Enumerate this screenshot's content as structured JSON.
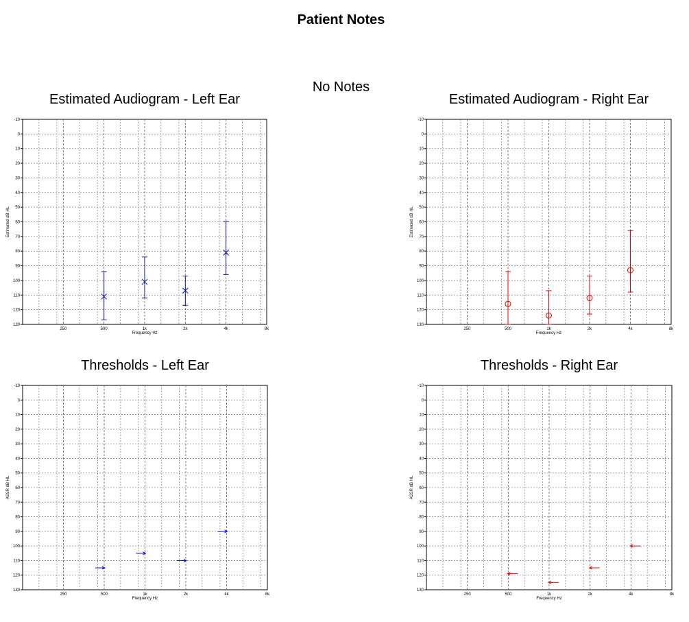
{
  "page": {
    "title": "Patient Notes",
    "notes": "No Notes"
  },
  "chart_data": [
    {
      "id": "audiogram-left",
      "type": "scatter",
      "title": "Estimated Audiogram - Left Ear",
      "xlabel": "Frequency Hz",
      "ylabel": "Estimated dB HL",
      "x_ticks": [
        "250",
        "500",
        "1k",
        "2k",
        "4k",
        "8k"
      ],
      "y_ticks": [
        -10,
        0,
        10,
        20,
        30,
        40,
        50,
        60,
        70,
        80,
        90,
        100,
        110,
        120,
        130
      ],
      "ylim": [
        -10,
        130
      ],
      "y_inverted": true,
      "grid": true,
      "marker": "x",
      "color": "#1010a0",
      "points": [
        {
          "x": "500",
          "y": 111,
          "err_low": 94,
          "err_high": 127
        },
        {
          "x": "1k",
          "y": 101,
          "err_low": 84,
          "err_high": 112
        },
        {
          "x": "2k",
          "y": 107,
          "err_low": 97,
          "err_high": 117
        },
        {
          "x": "4k",
          "y": 81,
          "err_low": 60,
          "err_high": 96
        }
      ]
    },
    {
      "id": "audiogram-right",
      "type": "scatter",
      "title": "Estimated Audiogram - Right Ear",
      "xlabel": "Frequency Hz",
      "ylabel": "Estimated dB HL",
      "x_ticks": [
        "250",
        "500",
        "1k",
        "2k",
        "4k",
        "8k"
      ],
      "y_ticks": [
        -10,
        0,
        10,
        20,
        30,
        40,
        50,
        60,
        70,
        80,
        90,
        100,
        110,
        120,
        130
      ],
      "ylim": [
        -10,
        130
      ],
      "y_inverted": true,
      "grid": true,
      "marker": "o",
      "color": "#e00000",
      "points": [
        {
          "x": "500",
          "y": 116,
          "err_low": 94,
          "err_high": 130
        },
        {
          "x": "1k",
          "y": 124,
          "err_low": 107,
          "err_high": 130
        },
        {
          "x": "2k",
          "y": 112,
          "err_low": 97,
          "err_high": 123
        },
        {
          "x": "4k",
          "y": 93,
          "err_low": 66,
          "err_high": 108
        }
      ]
    },
    {
      "id": "thresholds-left",
      "type": "scatter",
      "title": "Thresholds - Left Ear",
      "xlabel": "Frequency Hz",
      "ylabel": "ASSR dB HL",
      "x_ticks": [
        "250",
        "500",
        "1k",
        "2k",
        "4k",
        "8k"
      ],
      "y_ticks": [
        -10,
        0,
        10,
        20,
        30,
        40,
        50,
        60,
        70,
        80,
        90,
        100,
        110,
        120,
        130
      ],
      "ylim": [
        -10,
        130
      ],
      "y_inverted": true,
      "grid": true,
      "marker": "arrow-right",
      "color": "#0000e0",
      "points": [
        {
          "x": "500",
          "y": 115
        },
        {
          "x": "1k",
          "y": 105
        },
        {
          "x": "2k",
          "y": 110
        },
        {
          "x": "4k",
          "y": 90
        }
      ]
    },
    {
      "id": "thresholds-right",
      "type": "scatter",
      "title": "Thresholds - Right Ear",
      "xlabel": "Frequency Hz",
      "ylabel": "ASSR dB HL",
      "x_ticks": [
        "250",
        "500",
        "1k",
        "2k",
        "4k",
        "8k"
      ],
      "y_ticks": [
        -10,
        0,
        10,
        20,
        30,
        40,
        50,
        60,
        70,
        80,
        90,
        100,
        110,
        120,
        130
      ],
      "ylim": [
        -10,
        130
      ],
      "y_inverted": true,
      "grid": true,
      "marker": "arrow-left",
      "color": "#e00000",
      "points": [
        {
          "x": "500",
          "y": 119
        },
        {
          "x": "1k",
          "y": 125
        },
        {
          "x": "2k",
          "y": 115
        },
        {
          "x": "4k",
          "y": 100
        }
      ]
    }
  ]
}
